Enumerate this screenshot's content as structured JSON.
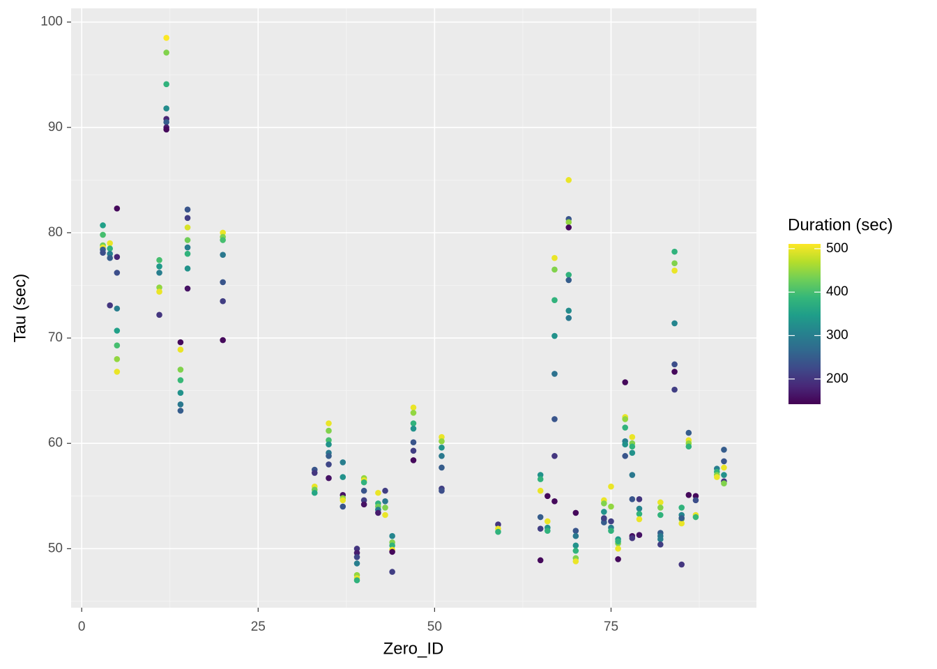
{
  "chart_data": {
    "type": "scatter",
    "x_label": "Zero_ID",
    "y_label": "Tau (sec)",
    "xlim": [
      -1.5,
      95.6
    ],
    "ylim": [
      44.4,
      101.3
    ],
    "xticks": [
      0,
      25,
      50,
      75
    ],
    "yticks": [
      50,
      60,
      70,
      80,
      90,
      100
    ],
    "grid": true,
    "legend_position": "right",
    "color_title": "Duration (sec)",
    "color_lim": [
      142,
      511
    ],
    "color_ticks": [
      200,
      300,
      400,
      500
    ],
    "colormap": [
      "#440154",
      "#482878",
      "#3e4989",
      "#31688e",
      "#26828e",
      "#1f9e89",
      "#35b779",
      "#6ece58",
      "#b5de2b",
      "#fde725"
    ],
    "x": [
      3,
      3,
      3,
      3,
      3,
      3,
      4,
      4,
      4,
      4,
      4,
      5,
      5,
      5,
      5,
      5,
      5,
      5,
      5,
      11,
      11,
      11,
      11,
      11,
      11,
      12,
      12,
      12,
      12,
      12,
      12,
      12,
      12,
      14,
      14,
      14,
      14,
      14,
      14,
      14,
      15,
      15,
      15,
      15,
      15,
      15,
      15,
      15,
      20,
      20,
      20,
      20,
      20,
      20,
      20,
      33,
      33,
      33,
      33,
      33,
      35,
      35,
      35,
      35,
      35,
      35,
      35,
      35,
      37,
      37,
      37,
      37,
      37,
      37,
      39,
      39,
      39,
      39,
      39,
      39,
      39,
      40,
      40,
      40,
      40,
      40,
      40,
      42,
      42,
      42,
      42,
      42,
      43,
      43,
      43,
      43,
      44,
      44,
      44,
      44,
      44,
      44,
      47,
      47,
      47,
      47,
      47,
      47,
      47,
      51,
      51,
      51,
      51,
      51,
      51,
      51,
      59,
      59,
      59,
      65,
      65,
      65,
      65,
      65,
      65,
      66,
      66,
      66,
      66,
      67,
      67,
      67,
      67,
      67,
      67,
      67,
      67,
      69,
      69,
      69,
      69,
      69,
      69,
      69,
      69,
      70,
      70,
      70,
      70,
      70,
      70,
      70,
      74,
      74,
      74,
      74,
      74,
      74,
      75,
      75,
      75,
      75,
      75,
      76,
      76,
      76,
      76,
      76,
      77,
      77,
      77,
      77,
      77,
      77,
      77,
      78,
      78,
      78,
      78,
      78,
      78,
      78,
      78,
      79,
      79,
      79,
      79,
      79,
      82,
      82,
      82,
      82,
      82,
      82,
      82,
      84,
      84,
      84,
      84,
      84,
      84,
      84,
      85,
      85,
      85,
      85,
      85,
      85,
      86,
      86,
      86,
      86,
      86,
      87,
      87,
      87,
      87,
      90,
      90,
      90,
      90,
      91,
      91,
      91,
      91,
      91,
      91
    ],
    "y": [
      80.7,
      79.8,
      78.8,
      78.6,
      78.4,
      78.1,
      79.0,
      78.5,
      78.0,
      77.6,
      73.1,
      82.3,
      77.7,
      76.2,
      72.8,
      70.7,
      69.3,
      68.0,
      66.8,
      77.4,
      76.8,
      76.2,
      74.8,
      74.4,
      72.2,
      98.5,
      97.1,
      94.1,
      91.8,
      90.8,
      90.5,
      90.0,
      89.8,
      69.6,
      68.9,
      67.0,
      66.0,
      64.8,
      63.7,
      63.1,
      82.2,
      81.4,
      80.5,
      79.3,
      78.6,
      78.0,
      76.6,
      74.7,
      80.0,
      79.6,
      79.3,
      77.9,
      75.3,
      73.5,
      69.8,
      57.5,
      57.2,
      55.9,
      55.6,
      55.3,
      61.9,
      61.2,
      60.3,
      59.9,
      59.1,
      58.8,
      58.0,
      56.7,
      58.2,
      56.8,
      55.1,
      54.8,
      54.6,
      54.0,
      50.0,
      49.6,
      49.2,
      48.6,
      47.5,
      47.2,
      47.0,
      56.7,
      56.5,
      56.3,
      55.5,
      54.6,
      54.2,
      55.3,
      54.3,
      54.0,
      53.7,
      53.4,
      55.5,
      54.5,
      53.9,
      53.2,
      51.2,
      50.6,
      50.3,
      49.9,
      49.7,
      47.8,
      63.4,
      62.9,
      61.9,
      61.4,
      60.1,
      59.3,
      58.4,
      60.6,
      60.2,
      59.6,
      58.8,
      57.7,
      55.7,
      55.5,
      52.3,
      51.9,
      51.6,
      57.0,
      56.6,
      55.5,
      53.0,
      51.9,
      48.9,
      55.0,
      52.6,
      52.0,
      51.7,
      77.6,
      76.5,
      73.6,
      70.2,
      66.6,
      62.3,
      58.8,
      54.5,
      85.0,
      81.3,
      81.0,
      80.5,
      76.0,
      75.5,
      72.6,
      71.9,
      53.4,
      51.7,
      51.2,
      50.3,
      49.8,
      49.1,
      48.8,
      54.6,
      54.3,
      53.5,
      52.8,
      52.5,
      52.9,
      55.9,
      54.0,
      52.6,
      52.0,
      51.7,
      50.9,
      50.5,
      50.0,
      49.0,
      50.7,
      65.8,
      62.5,
      62.3,
      61.5,
      60.2,
      59.9,
      58.8,
      60.6,
      60.0,
      59.7,
      59.1,
      57.0,
      54.7,
      51.2,
      51.0,
      54.7,
      53.8,
      53.3,
      52.8,
      51.3,
      54.4,
      53.9,
      53.2,
      51.5,
      51.2,
      50.9,
      50.4,
      78.2,
      77.1,
      76.4,
      71.4,
      67.5,
      66.8,
      65.1,
      53.9,
      53.2,
      52.8,
      52.4,
      48.5,
      52.9,
      61.0,
      60.3,
      60.0,
      59.7,
      55.1,
      55.0,
      54.6,
      53.2,
      53.0,
      57.6,
      57.3,
      57.0,
      56.8,
      59.4,
      58.3,
      57.7,
      57.0,
      56.4,
      56.2
    ],
    "color_values": [
      350,
      400,
      430,
      500,
      250,
      230,
      500,
      380,
      300,
      250,
      200,
      150,
      180,
      230,
      300,
      350,
      400,
      450,
      500,
      400,
      340,
      300,
      450,
      500,
      200,
      510,
      440,
      380,
      320,
      180,
      250,
      170,
      150,
      150,
      500,
      440,
      390,
      330,
      290,
      250,
      240,
      210,
      490,
      430,
      300,
      380,
      330,
      160,
      500,
      440,
      400,
      290,
      240,
      210,
      150,
      240,
      200,
      500,
      430,
      360,
      500,
      440,
      400,
      330,
      290,
      250,
      220,
      160,
      300,
      330,
      160,
      450,
      500,
      240,
      200,
      170,
      220,
      300,
      450,
      500,
      380,
      450,
      500,
      380,
      240,
      210,
      160,
      500,
      380,
      430,
      300,
      170,
      210,
      290,
      440,
      500,
      310,
      440,
      380,
      500,
      150,
      210,
      500,
      450,
      380,
      330,
      240,
      210,
      150,
      500,
      450,
      330,
      290,
      250,
      210,
      230,
      200,
      500,
      380,
      330,
      380,
      500,
      250,
      210,
      150,
      150,
      500,
      330,
      380,
      500,
      440,
      380,
      330,
      280,
      240,
      200,
      150,
      500,
      240,
      450,
      150,
      380,
      250,
      320,
      290,
      150,
      240,
      290,
      330,
      380,
      440,
      500,
      500,
      440,
      330,
      300,
      250,
      210,
      500,
      450,
      210,
      300,
      380,
      340,
      440,
      500,
      150,
      380,
      150,
      500,
      450,
      380,
      300,
      330,
      240,
      500,
      440,
      380,
      330,
      290,
      240,
      160,
      200,
      200,
      310,
      380,
      500,
      160,
      500,
      440,
      380,
      250,
      290,
      300,
      210,
      380,
      440,
      500,
      310,
      230,
      150,
      210,
      380,
      310,
      440,
      500,
      200,
      250,
      250,
      500,
      450,
      380,
      150,
      150,
      230,
      500,
      390,
      300,
      380,
      440,
      500,
      250,
      240,
      500,
      330,
      200,
      440
    ]
  }
}
